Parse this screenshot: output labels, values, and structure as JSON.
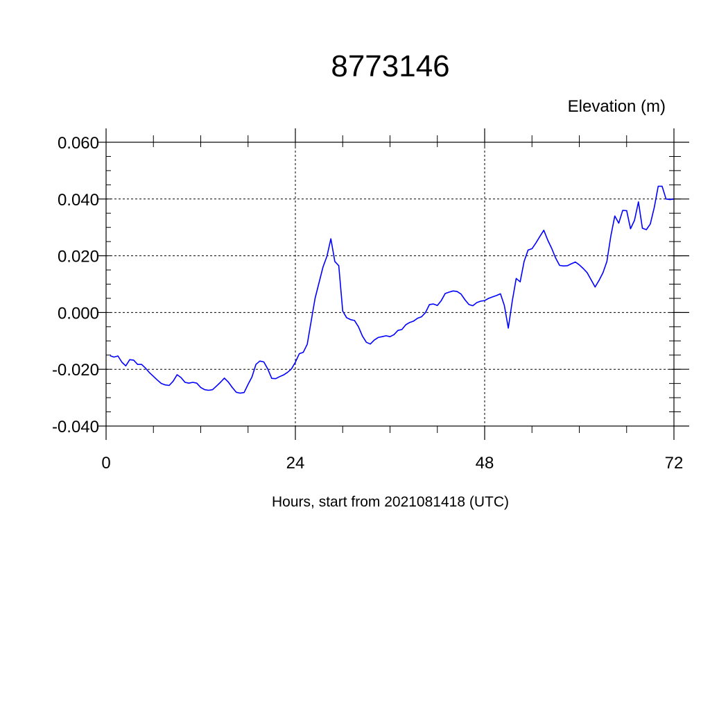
{
  "chart_data": {
    "type": "line",
    "title": "8773146",
    "ylabel": "Elevation (m)",
    "xlabel": "Hours, start from 2021081418 (UTC)",
    "xlim": [
      0,
      72
    ],
    "ylim": [
      -0.04,
      0.06
    ],
    "x_ticks": [
      0,
      24,
      48,
      72
    ],
    "x_tick_labels": [
      "0",
      "24",
      "48",
      "72"
    ],
    "y_ticks": [
      -0.04,
      -0.02,
      0.0,
      0.02,
      0.04,
      0.06
    ],
    "y_tick_labels": [
      "-0.040",
      "-0.020",
      "0.000",
      "0.020",
      "0.040",
      "0.060"
    ],
    "grid": true,
    "colors": {
      "line": "#0000ff",
      "axes": "#000000"
    },
    "series": [
      {
        "x": [
          0.5,
          1.0,
          1.5,
          2.0,
          2.5,
          3.0,
          3.5,
          4.0,
          4.5,
          5.0,
          5.5,
          6.0,
          6.5,
          7.0,
          7.5,
          8.0,
          8.5,
          9.0,
          9.5,
          10.0,
          10.5,
          11.0,
          11.5,
          12.0,
          12.5,
          13.0,
          13.5,
          14.0,
          14.5,
          15.0,
          15.5,
          16.0,
          16.5,
          17.0,
          17.5,
          18.0,
          18.5,
          19.0,
          19.5,
          20.0,
          20.5,
          21.0,
          21.5,
          22.0,
          22.5,
          23.0,
          23.5,
          24.0,
          24.5,
          25.0,
          25.5,
          26.0,
          26.5,
          27.0,
          27.5,
          28.0,
          28.5,
          29.0,
          29.5,
          30.0,
          30.5,
          31.0,
          31.5,
          32.0,
          32.5,
          33.0,
          33.5,
          34.0,
          34.5,
          35.0,
          35.5,
          36.0,
          36.5,
          37.0,
          37.5,
          38.0,
          38.5,
          39.0,
          39.5,
          40.0,
          40.5,
          41.0,
          41.5,
          42.0,
          42.5,
          43.0,
          43.5,
          44.0,
          44.5,
          45.0,
          45.5,
          46.0,
          46.5,
          47.0,
          47.5,
          48.0,
          48.5,
          49.0,
          49.5,
          50.0,
          50.5,
          51.0,
          51.5,
          52.0,
          52.5,
          53.0,
          53.5,
          54.0,
          54.5,
          55.0,
          55.5,
          56.0,
          56.5,
          57.0,
          57.5,
          58.0,
          58.5,
          59.0,
          59.5,
          60.0,
          60.5,
          61.0,
          61.5,
          62.0,
          62.5,
          63.0,
          63.5,
          64.0,
          64.5,
          65.0,
          65.5,
          66.0,
          66.5,
          67.0,
          67.5,
          68.0,
          68.5,
          69.0,
          69.5,
          70.0,
          70.5,
          71.0,
          71.5,
          72.0
        ],
        "y": [
          -0.0152,
          -0.0157,
          -0.0153,
          -0.0175,
          -0.0188,
          -0.0166,
          -0.0168,
          -0.0183,
          -0.0183,
          -0.0196,
          -0.0212,
          -0.0225,
          -0.0238,
          -0.025,
          -0.0255,
          -0.0257,
          -0.0242,
          -0.0219,
          -0.0229,
          -0.0246,
          -0.0249,
          -0.0246,
          -0.0249,
          -0.0264,
          -0.0272,
          -0.0274,
          -0.0272,
          -0.0259,
          -0.0246,
          -0.0231,
          -0.0245,
          -0.0264,
          -0.0281,
          -0.0284,
          -0.0282,
          -0.0253,
          -0.0227,
          -0.0183,
          -0.0171,
          -0.0174,
          -0.0199,
          -0.0232,
          -0.0233,
          -0.0226,
          -0.022,
          -0.0211,
          -0.0199,
          -0.0175,
          -0.0145,
          -0.014,
          -0.0112,
          -0.003,
          0.005,
          0.0105,
          0.016,
          0.0198,
          0.026,
          0.018,
          0.0165,
          0.0005,
          -0.0018,
          -0.0025,
          -0.0028,
          -0.005,
          -0.0083,
          -0.0105,
          -0.0111,
          -0.0097,
          -0.0088,
          -0.0085,
          -0.0082,
          -0.0085,
          -0.0078,
          -0.0063,
          -0.006,
          -0.0043,
          -0.0035,
          -0.003,
          -0.002,
          -0.0015,
          0.0,
          0.0028,
          0.003,
          0.0025,
          0.0042,
          0.0067,
          0.0072,
          0.0076,
          0.0074,
          0.0065,
          0.0045,
          0.0028,
          0.0024,
          0.0035,
          0.004,
          0.0042,
          0.005,
          0.0055,
          0.006,
          0.0066,
          0.0025,
          -0.0055,
          0.004,
          0.012,
          0.0108,
          0.018,
          0.022,
          0.0225,
          0.0245,
          0.0268,
          0.029,
          0.0255,
          0.0226,
          0.0192,
          0.0166,
          0.0164,
          0.0165,
          0.0172,
          0.0178,
          0.0168,
          0.0155,
          0.014,
          0.0115,
          0.009,
          0.0113,
          0.014,
          0.018,
          0.027,
          0.034,
          0.0315,
          0.036,
          0.0359,
          0.0295,
          0.0325,
          0.039,
          0.0297,
          0.0292,
          0.0312,
          0.037,
          0.0445,
          0.0445,
          0.04,
          0.0398,
          0.04
        ]
      }
    ]
  }
}
